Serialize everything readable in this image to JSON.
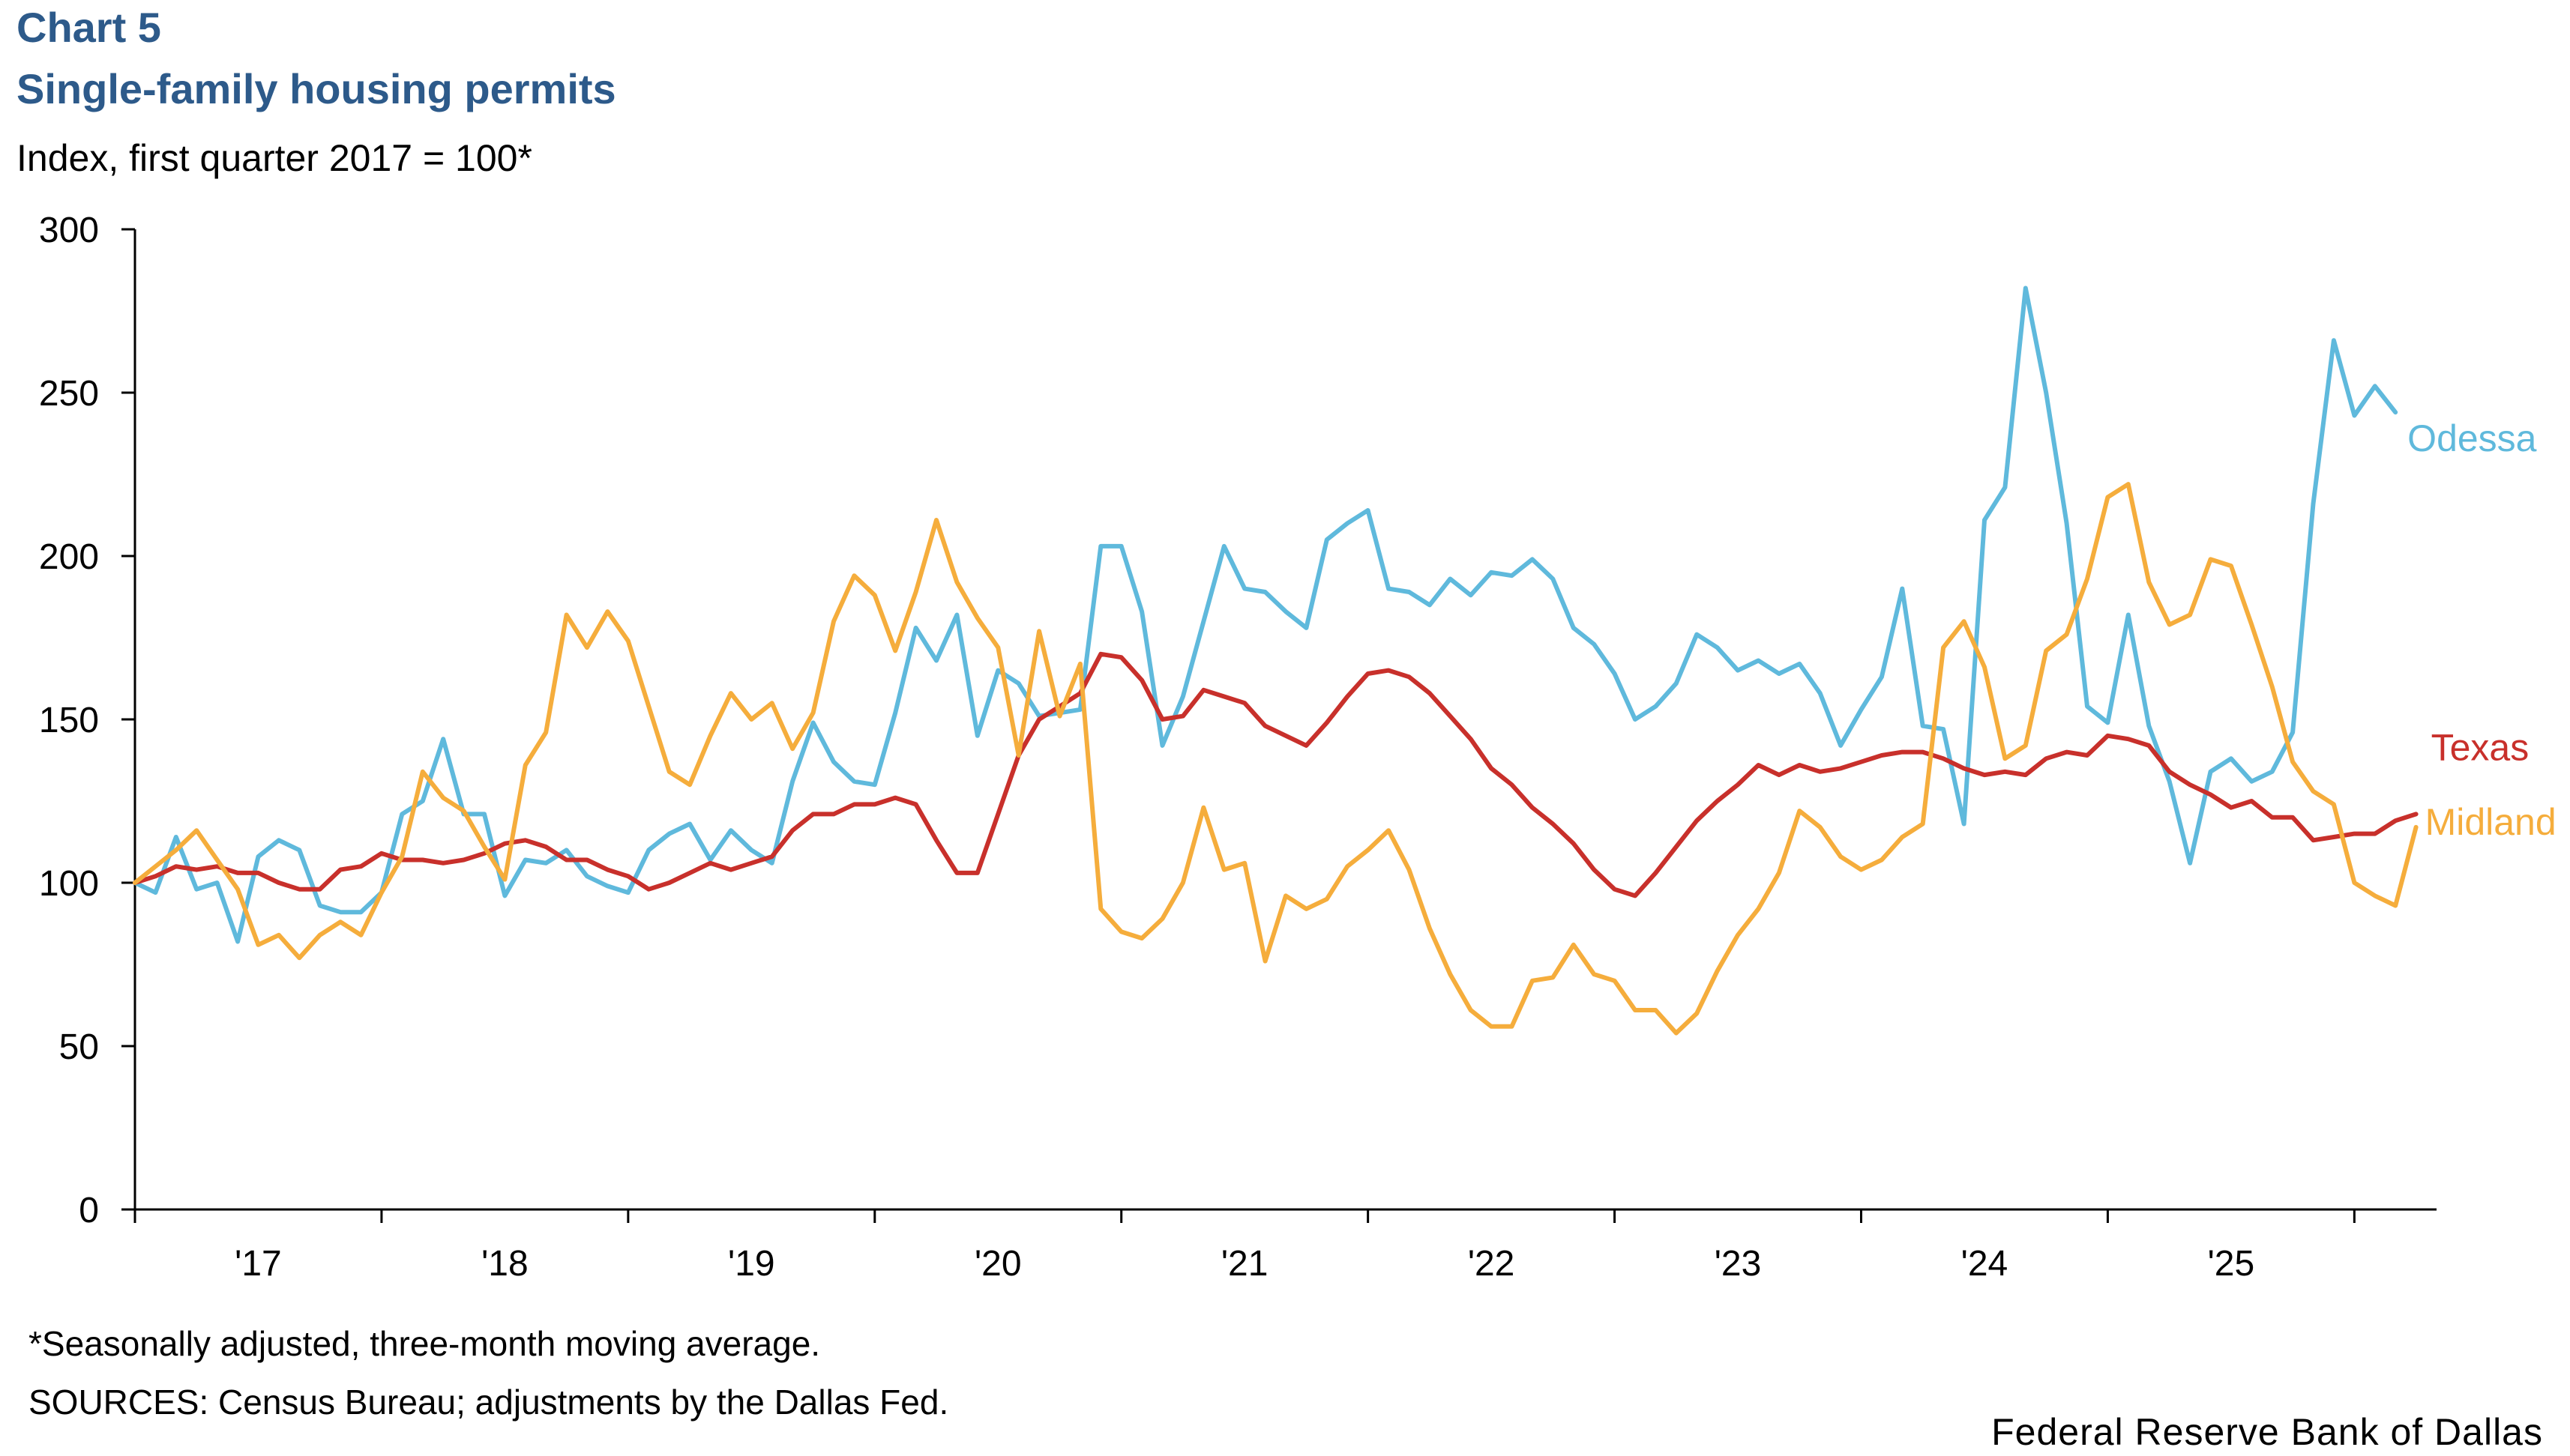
{
  "header": {
    "label": "Chart 5",
    "title": "Single-family housing permits",
    "subtitle": "Index, first quarter 2017 = 100*"
  },
  "footer": {
    "note": "*Seasonally adjusted, three-month moving average.",
    "source": "SOURCES: Census Bureau; adjustments by the Dallas Fed.",
    "credit": "Federal Reserve Bank of Dallas"
  },
  "colors": {
    "title": "#2d5a8a",
    "Odessa": "#5fb9dc",
    "Texas": "#c8302b",
    "Midland": "#f5ad3c",
    "axis": "#000000"
  },
  "chart_data": {
    "type": "line",
    "title": "Single-family housing permits",
    "ylabel": "Index, first quarter 2017 = 100*",
    "ylim": [
      0,
      300
    ],
    "yticks": [
      0,
      50,
      100,
      150,
      200,
      250,
      300
    ],
    "xticks": [
      "'17",
      "'18",
      "'19",
      "'20",
      "'21",
      "'22",
      "'23",
      "'24",
      "'25"
    ],
    "x_start": "2017-01",
    "frequency": "monthly",
    "grid": false,
    "legend": "line-end labels",
    "series": [
      {
        "name": "Odessa",
        "values": [
          100,
          97,
          114,
          98,
          100,
          82,
          108,
          113,
          110,
          93,
          91,
          91,
          97,
          121,
          125,
          144,
          121,
          121,
          96,
          107,
          106,
          110,
          102,
          99,
          97,
          110,
          115,
          118,
          107,
          116,
          110,
          106,
          131,
          149,
          137,
          131,
          130,
          152,
          178,
          168,
          182,
          145,
          165,
          161,
          151,
          152,
          153,
          203,
          203,
          183,
          142,
          157,
          180,
          203,
          190,
          189,
          183,
          178,
          205,
          210,
          214,
          190,
          189,
          185,
          193,
          188,
          195,
          194,
          199,
          193,
          178,
          173,
          164,
          150,
          154,
          161,
          176,
          172,
          165,
          168,
          164,
          167,
          158,
          142,
          153,
          163,
          190,
          148,
          147,
          118,
          211,
          221,
          282,
          250,
          210,
          154,
          149,
          182,
          148,
          131,
          106,
          134,
          138,
          131,
          134,
          146,
          216,
          266,
          243,
          252,
          244
        ],
        "end_label": "Odessa"
      },
      {
        "name": "Texas",
        "values": [
          100,
          102,
          105,
          104,
          105,
          103,
          103,
          100,
          98,
          98,
          104,
          105,
          109,
          107,
          107,
          106,
          107,
          109,
          112,
          113,
          111,
          107,
          107,
          104,
          102,
          98,
          100,
          103,
          106,
          104,
          106,
          108,
          116,
          121,
          121,
          124,
          124,
          126,
          124,
          113,
          103,
          103,
          121,
          139,
          150,
          154,
          158,
          170,
          169,
          162,
          150,
          151,
          159,
          157,
          155,
          148,
          145,
          142,
          149,
          157,
          164,
          165,
          163,
          158,
          151,
          144,
          135,
          130,
          123,
          118,
          112,
          104,
          98,
          96,
          103,
          111,
          119,
          125,
          130,
          136,
          133,
          136,
          134,
          135,
          137,
          139,
          140,
          140,
          138,
          135,
          133,
          134,
          133,
          138,
          140,
          139,
          145,
          144,
          142,
          134,
          130,
          127,
          123,
          125,
          120,
          120,
          113,
          114,
          115,
          115,
          119,
          121
        ],
        "end_label": "Texas"
      },
      {
        "name": "Midland",
        "values": [
          100,
          105,
          110,
          116,
          107,
          98,
          81,
          84,
          77,
          84,
          88,
          84,
          97,
          108,
          134,
          126,
          122,
          111,
          101,
          136,
          146,
          182,
          172,
          183,
          174,
          154,
          134,
          130,
          145,
          158,
          150,
          155,
          141,
          152,
          180,
          194,
          188,
          171,
          189,
          211,
          192,
          181,
          172,
          139,
          177,
          151,
          167,
          92,
          85,
          83,
          89,
          100,
          123,
          104,
          106,
          76,
          96,
          92,
          95,
          105,
          110,
          116,
          104,
          86,
          72,
          61,
          56,
          56,
          70,
          71,
          81,
          72,
          70,
          61,
          61,
          54,
          60,
          73,
          84,
          92,
          103,
          122,
          117,
          108,
          104,
          107,
          114,
          118,
          172,
          180,
          166,
          138,
          142,
          171,
          176,
          193,
          218,
          222,
          192,
          179,
          182,
          199,
          197,
          179,
          160,
          137,
          128,
          124,
          100,
          96,
          93,
          117
        ],
        "end_label": "Midland"
      }
    ]
  }
}
